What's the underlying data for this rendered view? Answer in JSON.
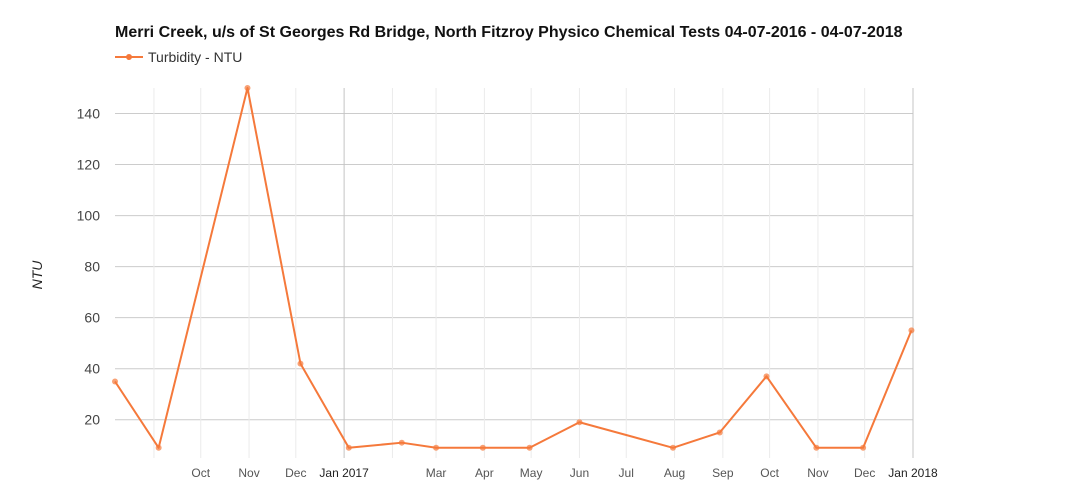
{
  "chart_data": {
    "type": "line",
    "title": "Merri Creek, u/s of St Georges Rd Bridge, North Fitzroy Physico Chemical Tests 04-07-2016 - 04-07-2018",
    "ylabel": "NTU",
    "xlabel": "",
    "ylim": [
      5,
      150
    ],
    "y_ticks": [
      20,
      40,
      60,
      80,
      100,
      120,
      140
    ],
    "x_range": [
      "2016-08-07",
      "2018-01-01"
    ],
    "x_ticks": [
      {
        "date": "2016-10-01",
        "label": "Oct",
        "major": false
      },
      {
        "date": "2016-11-01",
        "label": "Nov",
        "major": false
      },
      {
        "date": "2016-12-01",
        "label": "Dec",
        "major": false
      },
      {
        "date": "2017-01-01",
        "label": "Jan 2017",
        "major": true
      },
      {
        "date": "2017-03-01",
        "label": "Mar",
        "major": false
      },
      {
        "date": "2017-04-01",
        "label": "Apr",
        "major": false
      },
      {
        "date": "2017-05-01",
        "label": "May",
        "major": false
      },
      {
        "date": "2017-06-01",
        "label": "Jun",
        "major": false
      },
      {
        "date": "2017-07-01",
        "label": "Jul",
        "major": false
      },
      {
        "date": "2017-08-01",
        "label": "Aug",
        "major": false
      },
      {
        "date": "2017-09-01",
        "label": "Sep",
        "major": false
      },
      {
        "date": "2017-10-01",
        "label": "Oct",
        "major": false
      },
      {
        "date": "2017-11-01",
        "label": "Nov",
        "major": false
      },
      {
        "date": "2017-12-01",
        "label": "Dec",
        "major": false
      },
      {
        "date": "2018-01-01",
        "label": "Jan 2018",
        "major": true
      }
    ],
    "grid_dates": [
      "2016-09-01",
      "2017-02-01"
    ],
    "grid": true,
    "legend_position": "top-left",
    "series": [
      {
        "name": "Turbidity - NTU",
        "color": "#f5793b",
        "points": [
          {
            "x": "2016-08-07",
            "y": 35
          },
          {
            "x": "2016-09-04",
            "y": 9
          },
          {
            "x": "2016-10-31",
            "y": 150
          },
          {
            "x": "2016-12-04",
            "y": 42
          },
          {
            "x": "2017-01-04",
            "y": 9
          },
          {
            "x": "2017-02-07",
            "y": 11
          },
          {
            "x": "2017-03-01",
            "y": 9
          },
          {
            "x": "2017-03-31",
            "y": 9
          },
          {
            "x": "2017-04-30",
            "y": 9
          },
          {
            "x": "2017-06-01",
            "y": 19
          },
          {
            "x": "2017-07-31",
            "y": 9
          },
          {
            "x": "2017-08-30",
            "y": 15
          },
          {
            "x": "2017-09-29",
            "y": 37
          },
          {
            "x": "2017-10-31",
            "y": 9
          },
          {
            "x": "2017-11-30",
            "y": 9
          },
          {
            "x": "2017-12-31",
            "y": 55
          }
        ]
      }
    ]
  }
}
